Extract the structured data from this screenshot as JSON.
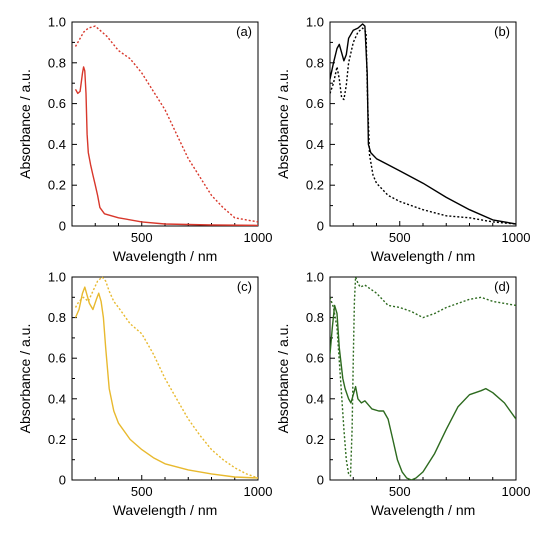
{
  "chart_data": [
    {
      "type": "line",
      "panel_label": "(a)",
      "xlabel": "Wavelength / nm",
      "ylabel": "Absorbance / a.u.",
      "xlim": [
        200,
        1000
      ],
      "ylim": [
        0,
        1.0
      ],
      "x_ticks": [
        500,
        1000
      ],
      "x_minor_ticks": [
        300,
        400,
        600,
        700,
        800,
        900
      ],
      "y_ticks": [
        0,
        0.2,
        0.4,
        0.6,
        0.8,
        1.0
      ],
      "y_tick_labels": [
        "0",
        "0.2",
        "0.4",
        "0.6",
        "0.8",
        "1.0"
      ],
      "x_tick_labels": [
        "500",
        "1000"
      ],
      "series": [
        {
          "style": "solid",
          "color": "#d8372b",
          "x": [
            215,
            225,
            235,
            245,
            250,
            255,
            260,
            265,
            270,
            280,
            290,
            300,
            310,
            320,
            340,
            400,
            500,
            600,
            800,
            1000
          ],
          "y": [
            0.67,
            0.65,
            0.66,
            0.75,
            0.78,
            0.76,
            0.65,
            0.45,
            0.36,
            0.3,
            0.25,
            0.2,
            0.15,
            0.09,
            0.06,
            0.04,
            0.02,
            0.01,
            0.005,
            0.003
          ]
        },
        {
          "style": "dotted",
          "color": "#d8372b",
          "x": [
            215,
            230,
            250,
            270,
            300,
            320,
            350,
            400,
            450,
            500,
            550,
            600,
            650,
            700,
            750,
            800,
            850,
            900,
            950,
            1000
          ],
          "y": [
            0.88,
            0.91,
            0.95,
            0.97,
            0.98,
            0.96,
            0.93,
            0.86,
            0.82,
            0.75,
            0.66,
            0.57,
            0.45,
            0.33,
            0.24,
            0.15,
            0.09,
            0.04,
            0.03,
            0.02
          ]
        }
      ]
    },
    {
      "type": "line",
      "panel_label": "(b)",
      "xlabel": "Wavelength / nm",
      "ylabel": "Absorbance / a.u.",
      "xlim": [
        200,
        1000
      ],
      "ylim": [
        0,
        1.0
      ],
      "x_ticks": [
        500,
        1000
      ],
      "x_minor_ticks": [
        300,
        400,
        600,
        700,
        800,
        900
      ],
      "y_ticks": [
        0,
        0.2,
        0.4,
        0.6,
        0.8,
        1.0
      ],
      "y_tick_labels": [
        "0",
        "0.2",
        "0.4",
        "0.6",
        "0.8",
        "1.0"
      ],
      "x_tick_labels": [
        "500",
        "1000"
      ],
      "series": [
        {
          "style": "solid",
          "color": "#000000",
          "x": [
            200,
            215,
            230,
            240,
            250,
            260,
            270,
            280,
            300,
            320,
            340,
            350,
            360,
            365,
            375,
            400,
            450,
            500,
            600,
            700,
            800,
            900,
            1000
          ],
          "y": [
            0.72,
            0.8,
            0.87,
            0.89,
            0.85,
            0.81,
            0.84,
            0.92,
            0.96,
            0.97,
            0.99,
            0.98,
            0.75,
            0.4,
            0.36,
            0.33,
            0.3,
            0.27,
            0.21,
            0.14,
            0.08,
            0.03,
            0.01
          ]
        },
        {
          "style": "dotted",
          "color": "#000000",
          "x": [
            200,
            215,
            230,
            240,
            250,
            260,
            270,
            280,
            300,
            320,
            340,
            355,
            362,
            370,
            385,
            400,
            450,
            500,
            550,
            600,
            700,
            800,
            900,
            1000
          ],
          "y": [
            0.65,
            0.7,
            0.78,
            0.72,
            0.63,
            0.62,
            0.69,
            0.8,
            0.9,
            0.95,
            0.97,
            0.95,
            0.6,
            0.35,
            0.25,
            0.21,
            0.15,
            0.12,
            0.1,
            0.08,
            0.05,
            0.04,
            0.02,
            0.01
          ]
        }
      ]
    },
    {
      "type": "line",
      "panel_label": "(c)",
      "xlabel": "Wavelength / nm",
      "ylabel": "Absorbance / a.u.",
      "xlim": [
        200,
        1000
      ],
      "ylim": [
        0,
        1.0
      ],
      "x_ticks": [
        500,
        1000
      ],
      "x_minor_ticks": [
        300,
        400,
        600,
        700,
        800,
        900
      ],
      "y_ticks": [
        0,
        0.2,
        0.4,
        0.6,
        0.8,
        1.0
      ],
      "y_tick_labels": [
        "0",
        "0.2",
        "0.4",
        "0.6",
        "0.8",
        "1.0"
      ],
      "x_tick_labels": [
        "500",
        "1000"
      ],
      "series": [
        {
          "style": "solid",
          "color": "#e8b92e",
          "x": [
            215,
            230,
            245,
            255,
            265,
            275,
            290,
            305,
            315,
            325,
            335,
            345,
            360,
            380,
            400,
            450,
            500,
            550,
            600,
            700,
            800,
            900,
            1000
          ],
          "y": [
            0.8,
            0.84,
            0.92,
            0.95,
            0.91,
            0.87,
            0.84,
            0.89,
            0.92,
            0.88,
            0.8,
            0.65,
            0.45,
            0.34,
            0.28,
            0.2,
            0.15,
            0.11,
            0.08,
            0.05,
            0.03,
            0.015,
            0.01
          ]
        },
        {
          "style": "dotted",
          "color": "#e8b92e",
          "x": [
            215,
            230,
            250,
            270,
            290,
            310,
            330,
            345,
            360,
            380,
            400,
            450,
            500,
            550,
            600,
            650,
            700,
            750,
            800,
            850,
            900,
            950,
            1000
          ],
          "y": [
            0.85,
            0.88,
            0.9,
            0.88,
            0.93,
            0.98,
            1.0,
            0.98,
            0.93,
            0.88,
            0.85,
            0.77,
            0.72,
            0.62,
            0.5,
            0.4,
            0.3,
            0.22,
            0.15,
            0.1,
            0.06,
            0.03,
            0.01
          ]
        }
      ]
    },
    {
      "type": "line",
      "panel_label": "(d)",
      "xlabel": "Wavelength / nm",
      "ylabel": "Absorbance / a.u.",
      "xlim": [
        200,
        1000
      ],
      "ylim": [
        0,
        1.0
      ],
      "x_ticks": [
        500,
        1000
      ],
      "x_minor_ticks": [
        300,
        400,
        600,
        700,
        800,
        900
      ],
      "y_ticks": [
        0,
        0.2,
        0.4,
        0.6,
        0.8,
        1.0
      ],
      "y_tick_labels": [
        "0",
        "0.2",
        "0.4",
        "0.6",
        "0.8",
        "1.0"
      ],
      "x_tick_labels": [
        "500",
        "1000"
      ],
      "series": [
        {
          "style": "solid",
          "color": "#2d6a1f",
          "x": [
            200,
            210,
            220,
            230,
            240,
            255,
            265,
            280,
            290,
            300,
            310,
            320,
            335,
            350,
            380,
            410,
            430,
            450,
            470,
            490,
            510,
            530,
            550,
            570,
            600,
            650,
            700,
            750,
            800,
            850,
            870,
            900,
            950,
            1000
          ],
          "y": [
            0.62,
            0.75,
            0.86,
            0.82,
            0.65,
            0.5,
            0.45,
            0.4,
            0.38,
            0.42,
            0.46,
            0.4,
            0.38,
            0.39,
            0.35,
            0.34,
            0.34,
            0.3,
            0.2,
            0.1,
            0.04,
            0.01,
            0.0,
            0.01,
            0.04,
            0.13,
            0.25,
            0.36,
            0.42,
            0.44,
            0.45,
            0.43,
            0.38,
            0.3
          ]
        },
        {
          "style": "dotted",
          "color": "#2d6a1f",
          "x": [
            200,
            215,
            230,
            245,
            260,
            270,
            280,
            288,
            295,
            300,
            305,
            310,
            320,
            330,
            350,
            400,
            450,
            500,
            550,
            600,
            650,
            700,
            750,
            800,
            850,
            900,
            950,
            1000
          ],
          "y": [
            0.9,
            0.85,
            0.75,
            0.5,
            0.25,
            0.1,
            0.03,
            0.02,
            0.25,
            0.6,
            0.88,
            1.0,
            0.97,
            0.95,
            0.96,
            0.92,
            0.86,
            0.85,
            0.83,
            0.8,
            0.82,
            0.85,
            0.87,
            0.89,
            0.9,
            0.88,
            0.87,
            0.86
          ]
        }
      ]
    }
  ]
}
